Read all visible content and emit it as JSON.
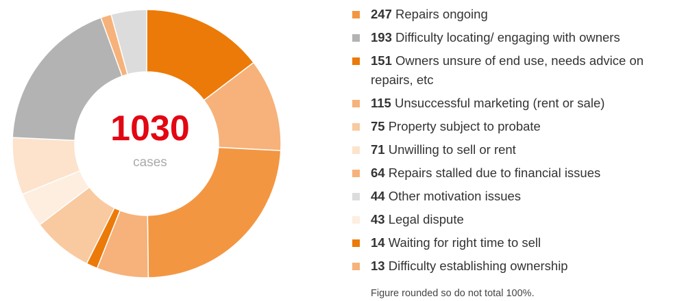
{
  "chart_data": {
    "type": "pie",
    "total": 1030,
    "total_label": "cases",
    "categories": [
      "Repairs ongoing",
      "Difficulty locating/ engaging with owners",
      "Owners unsure of end use, needs advice on repairs, etc",
      "Unsuccessful marketing (rent or sale)",
      "Property subject to probate",
      "Unwilling to sell or rent",
      "Repairs stalled due to financial issues",
      "Other motivation issues",
      "Legal dispute",
      "Waiting for right time to sell",
      "Difficulty establishing ownership"
    ],
    "values": [
      247,
      193,
      151,
      115,
      75,
      71,
      64,
      44,
      43,
      14,
      13
    ],
    "colors": [
      "#f39642",
      "#b3b3b3",
      "#ec7a08",
      "#f6b27a",
      "#f9c9a0",
      "#fde3cc",
      "#f6b27a",
      "#dcdcdc",
      "#fdeee0",
      "#ec7a08",
      "#f6b27a"
    ],
    "footnote": "Figure rounded so do not total 100%."
  }
}
